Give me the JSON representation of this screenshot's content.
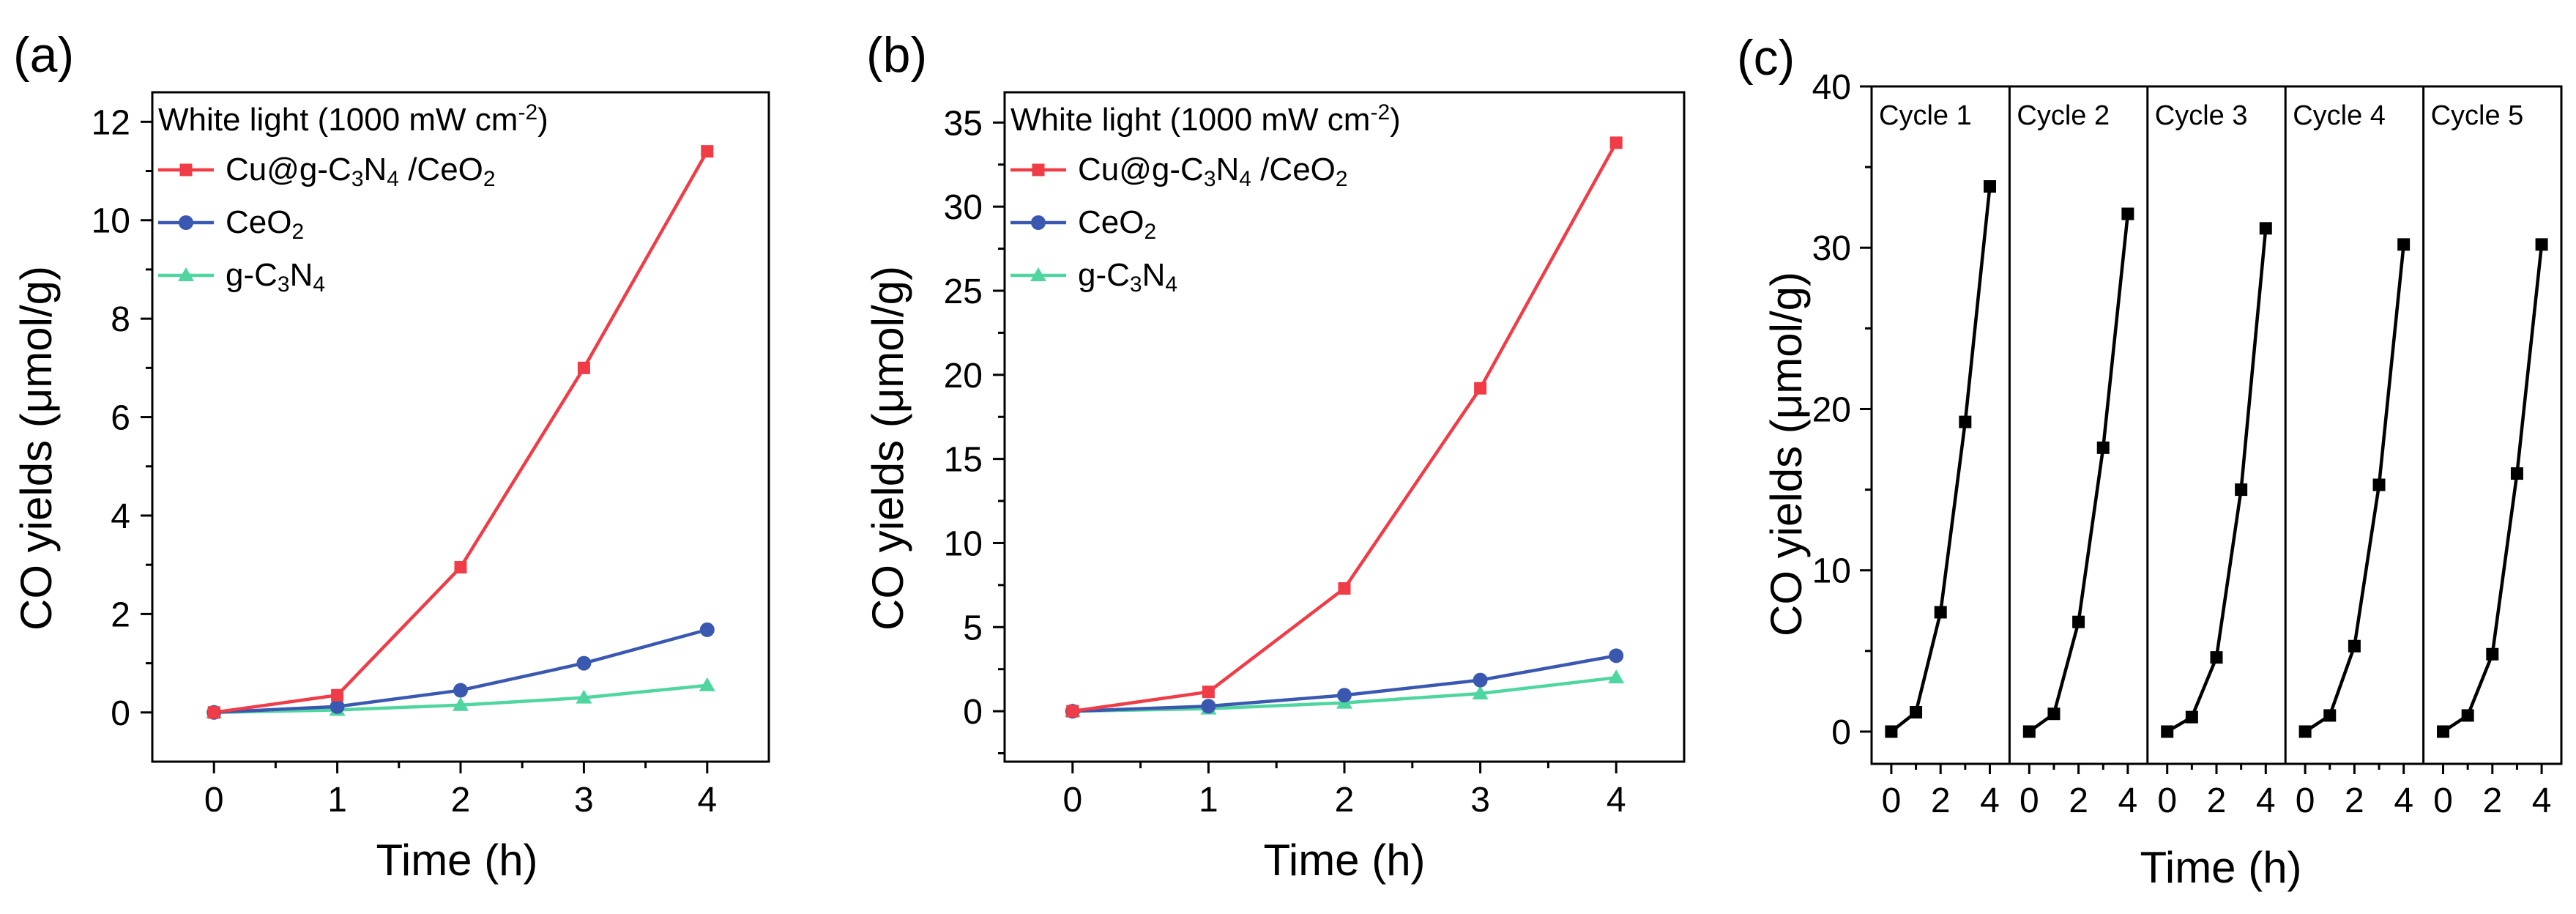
{
  "chart_data": [
    {
      "type": "line",
      "panel_label": "(a)",
      "legend_title": [
        "White light (1000 mW cm",
        "-2",
        ")"
      ],
      "xlabel": "Time (h)",
      "ylabel": "CO yields (μmol/g)",
      "xlim": [
        -0.5,
        4.5
      ],
      "ylim": [
        -1,
        12.6
      ],
      "xticks": [
        0,
        1,
        2,
        3,
        4
      ],
      "xtick_labels": [
        "0",
        "1",
        "2",
        "3",
        "4"
      ],
      "yticks": [
        0,
        2,
        4,
        6,
        8,
        10,
        12
      ],
      "ytick_labels": [
        "0",
        "2",
        "4",
        "6",
        "8",
        "10",
        "12"
      ],
      "x": [
        0,
        1,
        2,
        3,
        4
      ],
      "series": [
        {
          "name": "Cu@g-C3N4 /CeO2",
          "legend": [
            [
              "Cu@g-C",
              ""
            ],
            [
              "3",
              "sub"
            ],
            [
              "N",
              ""
            ],
            [
              "4",
              "sub"
            ],
            [
              " /CeO",
              ""
            ],
            [
              "2",
              "sub"
            ]
          ],
          "color": "#f03c46",
          "marker": "square",
          "values": [
            0,
            0.35,
            2.95,
            7.0,
            11.4
          ]
        },
        {
          "name": "CeO2",
          "legend": [
            [
              "CeO",
              ""
            ],
            [
              "2",
              "sub"
            ]
          ],
          "color": "#3a58b0",
          "marker": "circle",
          "values": [
            0,
            0.12,
            0.45,
            1.0,
            1.68
          ]
        },
        {
          "name": "g-C3N4",
          "legend": [
            [
              "g-C",
              ""
            ],
            [
              "3",
              "sub"
            ],
            [
              "N",
              ""
            ],
            [
              "4",
              "sub"
            ]
          ],
          "color": "#4fd6a0",
          "marker": "triangle",
          "values": [
            0,
            0.05,
            0.15,
            0.3,
            0.55
          ]
        }
      ]
    },
    {
      "type": "line",
      "panel_label": "(b)",
      "legend_title": [
        "White light (1000 mW cm",
        "-2",
        ")"
      ],
      "xlabel": "Time (h)",
      "ylabel": "CO yields (μmol/g)",
      "xlim": [
        -0.5,
        4.5
      ],
      "ylim": [
        -3,
        36.8
      ],
      "xticks": [
        0,
        1,
        2,
        3,
        4
      ],
      "xtick_labels": [
        "0",
        "1",
        "2",
        "3",
        "4"
      ],
      "yticks": [
        0,
        5,
        10,
        15,
        20,
        25,
        30,
        35
      ],
      "ytick_labels": [
        "0",
        "5",
        "10",
        "15",
        "20",
        "25",
        "30",
        "35"
      ],
      "x": [
        0,
        1,
        2,
        3,
        4
      ],
      "series": [
        {
          "name": "Cu@g-C3N4 /CeO2",
          "legend": [
            [
              "Cu@g-C",
              ""
            ],
            [
              "3",
              "sub"
            ],
            [
              "N",
              ""
            ],
            [
              "4",
              "sub"
            ],
            [
              " /CeO",
              ""
            ],
            [
              "2",
              "sub"
            ]
          ],
          "color": "#f03c46",
          "marker": "square",
          "values": [
            0,
            1.15,
            7.3,
            19.2,
            33.8
          ]
        },
        {
          "name": "CeO2",
          "legend": [
            [
              "CeO",
              ""
            ],
            [
              "2",
              "sub"
            ]
          ],
          "color": "#3a58b0",
          "marker": "circle",
          "values": [
            0,
            0.3,
            0.95,
            1.85,
            3.3
          ]
        },
        {
          "name": "g-C3N4",
          "legend": [
            [
              "g-C",
              ""
            ],
            [
              "3",
              "sub"
            ],
            [
              "N",
              ""
            ],
            [
              "4",
              "sub"
            ]
          ],
          "color": "#4fd6a0",
          "marker": "triangle",
          "values": [
            0,
            0.15,
            0.5,
            1.05,
            2.0
          ]
        }
      ]
    },
    {
      "type": "line",
      "panel_label": "(c)",
      "xlabel": "Time (h)",
      "ylabel": "CO yields (μmol/g)",
      "xlim": [
        -0.8,
        4.8
      ],
      "ylim": [
        -2,
        40
      ],
      "xticks": [
        0,
        2,
        4
      ],
      "xtick_labels": [
        "0",
        "2",
        "4"
      ],
      "yticks": [
        0,
        10,
        20,
        30,
        40
      ],
      "ytick_labels": [
        "0",
        "10",
        "20",
        "30",
        "40"
      ],
      "x": [
        0,
        1,
        2,
        3,
        4
      ],
      "color": "#000000",
      "marker": "square",
      "cycles": [
        {
          "name": "Cycle 1",
          "values": [
            0,
            1.2,
            7.4,
            19.2,
            33.8
          ]
        },
        {
          "name": "Cycle 2",
          "values": [
            0,
            1.1,
            6.8,
            17.6,
            32.1
          ]
        },
        {
          "name": "Cycle 3",
          "values": [
            0,
            0.9,
            4.6,
            15.0,
            31.2
          ]
        },
        {
          "name": "Cycle 4",
          "values": [
            0,
            1.0,
            5.3,
            15.3,
            30.2
          ]
        },
        {
          "name": "Cycle 5",
          "values": [
            0,
            1.0,
            4.8,
            16.0,
            30.2
          ]
        }
      ]
    }
  ]
}
